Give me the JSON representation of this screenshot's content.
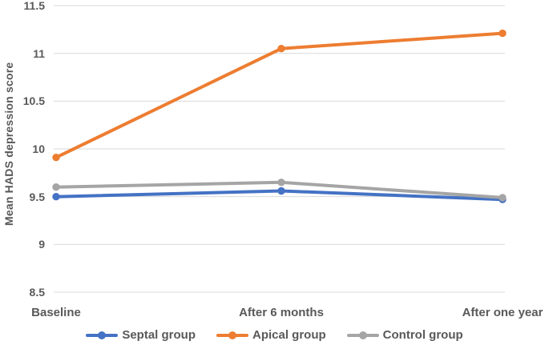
{
  "chart_data": {
    "type": "line",
    "title": "",
    "xlabel": "",
    "ylabel": "Mean HADS depression score",
    "categories": [
      "Baseline",
      "After 6 months",
      "After one year"
    ],
    "series": [
      {
        "name": "Septal group",
        "color": "#4472C4",
        "values": [
          9.5,
          9.56,
          9.47
        ]
      },
      {
        "name": "Apical group",
        "color": "#ED7D31",
        "values": [
          9.91,
          11.05,
          11.21
        ]
      },
      {
        "name": "Control group",
        "color": "#A5A5A5",
        "values": [
          9.6,
          9.65,
          9.49
        ]
      }
    ],
    "ylim": [
      8.5,
      11.5
    ],
    "ytick_step": 0.5,
    "ytick_labels": [
      "11.5",
      "11",
      "10.5",
      "10",
      "9.5",
      "9",
      "8.5"
    ],
    "grid": true,
    "legend_position": "bottom"
  },
  "styles": {
    "text_color": "#595959",
    "gridline_color": "#D9D9D9",
    "background": "#FFFFFF"
  }
}
